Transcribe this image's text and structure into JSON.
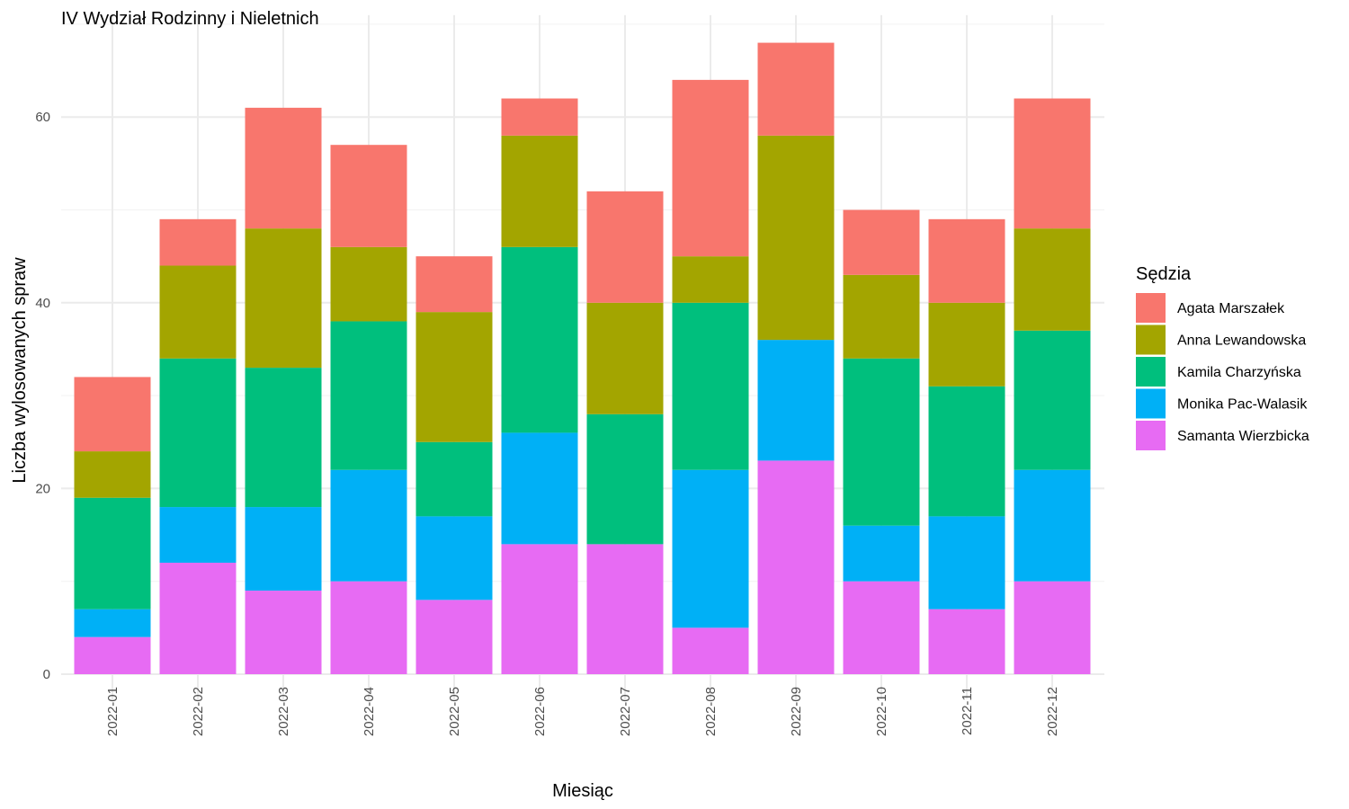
{
  "chart_data": {
    "type": "bar",
    "stacked": true,
    "title": "IV Wydział Rodzinny i Nieletnich",
    "xlabel": "Miesiąc",
    "ylabel": "Liczba wylosowanych spraw",
    "ylim": [
      0,
      70
    ],
    "yticks": [
      0,
      20,
      40,
      60
    ],
    "grid": true,
    "legend_title": "Sędzia",
    "legend_position": "right",
    "categories": [
      "2022-01",
      "2022-02",
      "2022-03",
      "2022-04",
      "2022-05",
      "2022-06",
      "2022-07",
      "2022-08",
      "2022-09",
      "2022-10",
      "2022-11",
      "2022-12"
    ],
    "series": [
      {
        "name": "Samanta Wierzbicka",
        "color": "#E76BF3",
        "values": [
          4,
          12,
          9,
          10,
          8,
          14,
          14,
          5,
          23,
          10,
          7,
          10
        ]
      },
      {
        "name": "Monika Pac-Walasik",
        "color": "#00B0F6",
        "values": [
          3,
          6,
          9,
          12,
          9,
          12,
          0,
          17,
          13,
          6,
          10,
          12
        ]
      },
      {
        "name": "Kamila Charzyńska",
        "color": "#00BF7D",
        "values": [
          12,
          16,
          15,
          16,
          8,
          20,
          14,
          18,
          0,
          18,
          14,
          15
        ]
      },
      {
        "name": "Anna Lewandowska",
        "color": "#A3A500",
        "values": [
          5,
          10,
          15,
          8,
          14,
          12,
          12,
          5,
          22,
          9,
          9,
          11
        ]
      },
      {
        "name": "Agata Marszałek",
        "color": "#F8766D",
        "values": [
          8,
          5,
          13,
          11,
          6,
          4,
          12,
          19,
          10,
          7,
          9,
          14
        ]
      }
    ],
    "legend_order": [
      "Agata Marszałek",
      "Anna Lewandowska",
      "Kamila Charzyńska",
      "Monika Pac-Walasik",
      "Samanta Wierzbicka"
    ]
  }
}
